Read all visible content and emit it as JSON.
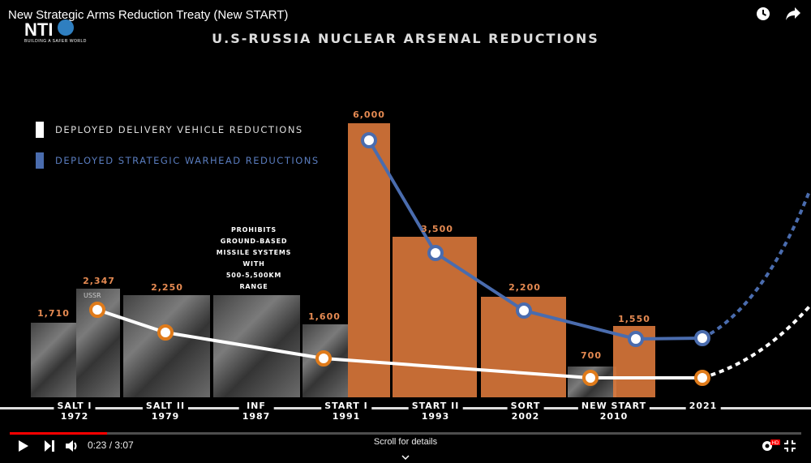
{
  "video": {
    "title": "New Strategic Arms Reduction Treaty (New START)",
    "icons": [
      "clock-icon",
      "share-icon"
    ]
  },
  "logo": {
    "mark": "NTI",
    "tagline": "BUILDING A SAFER WORLD"
  },
  "chart_data": {
    "type": "line",
    "title": "U.S-RUSSIA NUCLEAR ARSENAL REDUCTIONS",
    "legend_placement": "top-left",
    "categories": [
      "SALT I 1972",
      "SALT II 1979",
      "INF 1987",
      "START I 1991",
      "START II 1993",
      "SORT 2002",
      "NEW START 2010",
      "2021"
    ],
    "series": [
      {
        "name": "DEPLOYED DELIVERY VEHICLE REDUCTIONS",
        "color": "#ffffff",
        "marker_color": "#e07b1a",
        "points": [
          {
            "x": "SALT I 1972",
            "y": 2347,
            "label": "2,347"
          },
          {
            "x": "SALT II 1979",
            "y": 2250,
            "label": "2,250"
          },
          {
            "x": "START I 1991",
            "y": 1600,
            "label": "1,600"
          },
          {
            "x": "NEW START 2010",
            "y": 700,
            "label": "700"
          },
          {
            "x": "2021",
            "y": 700
          }
        ]
      },
      {
        "name": "DEPLOYED STRATEGIC WARHEAD REDUCTIONS",
        "color": "#5a7dbf",
        "marker_color": "#4a6cae",
        "points": [
          {
            "x": "START I 1991",
            "y": 6000,
            "label": "6,000"
          },
          {
            "x": "START II 1993",
            "y": 3500,
            "label": "3,500"
          },
          {
            "x": "SORT 2002",
            "y": 2200,
            "label": "2,200"
          },
          {
            "x": "NEW START 2010",
            "y": 1550,
            "label": "1,550"
          },
          {
            "x": "2021",
            "y": 1550
          }
        ]
      }
    ],
    "extra_labels": [
      {
        "x": "SALT I 1972",
        "label": "1,710"
      }
    ],
    "annotation_inf": [
      "PROHIBITS",
      "GROUND-BASED",
      "MISSILE SYSTEMS",
      "WITH",
      "500-5,500KM",
      "RANGE"
    ],
    "photo_caption": "USSR"
  },
  "timeline": [
    {
      "name": "SALT I",
      "year": "1972"
    },
    {
      "name": "SALT II",
      "year": "1979"
    },
    {
      "name": "INF",
      "year": "1987"
    },
    {
      "name": "START I",
      "year": "1991"
    },
    {
      "name": "START II",
      "year": "1993"
    },
    {
      "name": "SORT",
      "year": "2002"
    },
    {
      "name": "NEW START",
      "year": "2010"
    },
    {
      "name": "2021",
      "year": ""
    }
  ],
  "player": {
    "time": "0:23 / 3:07",
    "progress_fraction": 0.123,
    "scroll_hint": "Scroll for details",
    "hd_badge": "HD"
  }
}
